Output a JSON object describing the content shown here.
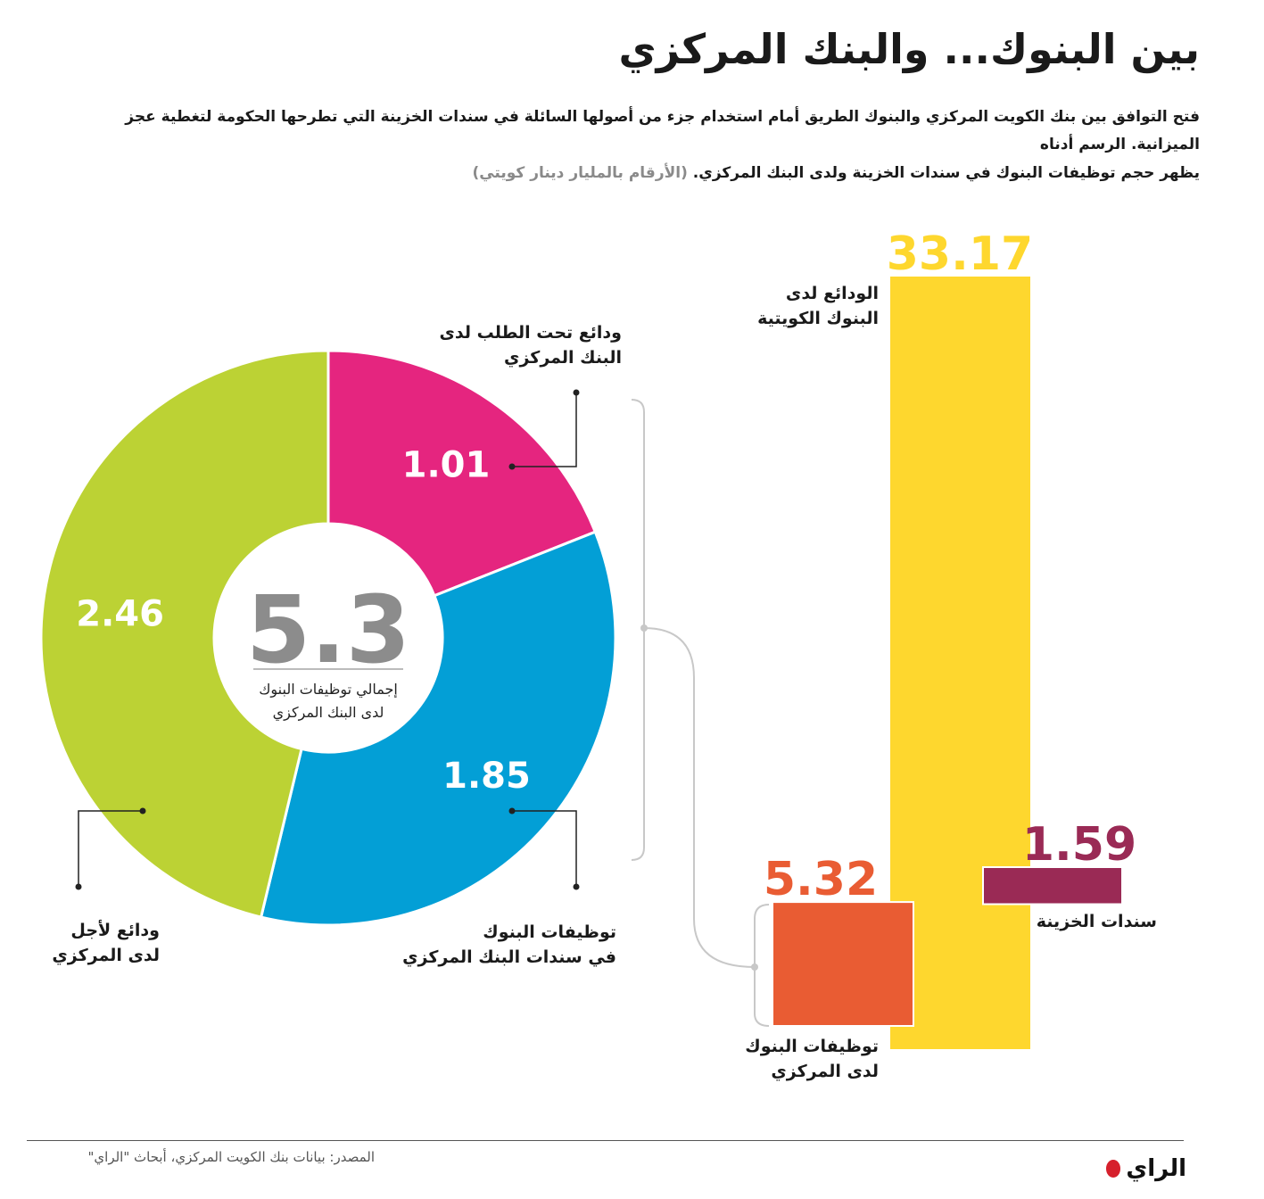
{
  "title": "بين البنوك... والبنك المركزي",
  "intro": {
    "line1": "فتح التوافق بين بنك الكويت المركزي والبنوك الطريق أمام استخدام جزء من أصولها السائلة في سندات الخزينة التي تطرحها الحكومة لتغطية عجز الميزانية. الرسم أدناه",
    "line2": "يظهر حجم توظيفات البنوك في سندات الخزينة ولدى البنك المركزي.",
    "unit_note": "(الأرقام بالمليار دينار كويتي)"
  },
  "chart_data": [
    {
      "type": "pie",
      "variant": "donut",
      "title": "إجمالي توظيفات البنوك لدى البنك المركزي",
      "total": 5.3,
      "center_label_line1": "إجمالي توظيفات البنوك",
      "center_label_line2": "لدى البنك المركزي",
      "slices": [
        {
          "label_line1": "ودائع تحت الطلب لدى",
          "label_line2": "البنك المركزي",
          "value": 1.01,
          "value_text": "1.01",
          "color": "#e5257f"
        },
        {
          "label_line1": "توظيفات البنوك",
          "label_line2": "في سندات البنك المركزي",
          "value": 1.85,
          "value_text": "1.85",
          "color": "#039fd6"
        },
        {
          "label_line1": "ودائع لأجل",
          "label_line2": "لدى المركزي",
          "value": 2.46,
          "value_text": "2.46",
          "color": "#bcd234"
        }
      ]
    },
    {
      "type": "bar",
      "bars": [
        {
          "label_line1": "الودائع لدى",
          "label_line2": "البنوك الكويتية",
          "value": 33.17,
          "value_text": "33.17",
          "color": "#fed72e",
          "value_color": "#fed72e"
        },
        {
          "label_line1": "سندات الخزينة",
          "label_line2": "",
          "value": 1.59,
          "value_text": "1.59",
          "color": "#9a2a55",
          "value_color": "#9a2a55"
        },
        {
          "label_line1": "توظيفات البنوك",
          "label_line2": "لدى المركزي",
          "value": 5.32,
          "value_text": "5.32",
          "color": "#e95c33",
          "value_color": "#e95c33"
        }
      ]
    }
  ],
  "footer": {
    "source": "المصدر:  بيانات بنك الكويت المركزي، أبحاث \"الراي\"",
    "logo": "الراي"
  }
}
